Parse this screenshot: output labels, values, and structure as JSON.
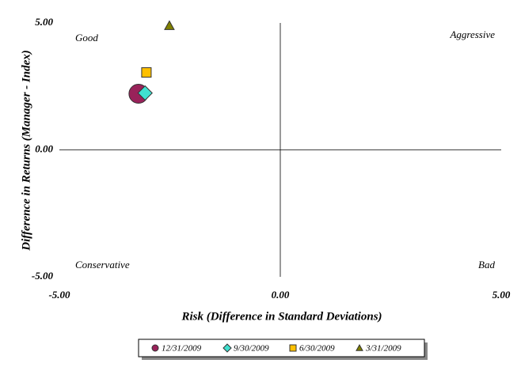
{
  "chart_data": {
    "type": "scatter",
    "y_label": "Difference in Returns (Manager - Index)",
    "x_label": "Risk (Difference in Standard Deviations)",
    "annotations": [
      "Good",
      "Aggressive",
      "Conservative",
      "Bad"
    ],
    "xlim": [
      -5,
      5
    ],
    "ylim": [
      -5,
      5
    ],
    "xticks": [
      {
        "value": -5,
        "label": "-5.00"
      },
      {
        "value": 0,
        "label": "0.00"
      },
      {
        "value": 5,
        "label": "5.00"
      }
    ],
    "yticks": [
      {
        "value": -5,
        "label": "-5.00"
      },
      {
        "value": 0,
        "label": "0.00"
      },
      {
        "value": 5,
        "label": "5.00"
      }
    ],
    "series": [
      {
        "name": "12/31/2009",
        "color": "#99225a",
        "marker": "circle",
        "x": [
          -3.21
        ],
        "values": [
          2.21
        ]
      },
      {
        "name": "9/30/2009",
        "color": "#40e0d0",
        "marker": "diamond",
        "x": [
          -3.06
        ],
        "values": [
          2.24
        ]
      },
      {
        "name": "6/30/2009",
        "color": "#ffc000",
        "marker": "square",
        "x": [
          -3.03
        ],
        "values": [
          3.05
        ]
      },
      {
        "name": "3/31/2009",
        "color": "#808000",
        "marker": "triangle",
        "x": [
          -2.51
        ],
        "values": [
          4.89
        ]
      }
    ]
  }
}
